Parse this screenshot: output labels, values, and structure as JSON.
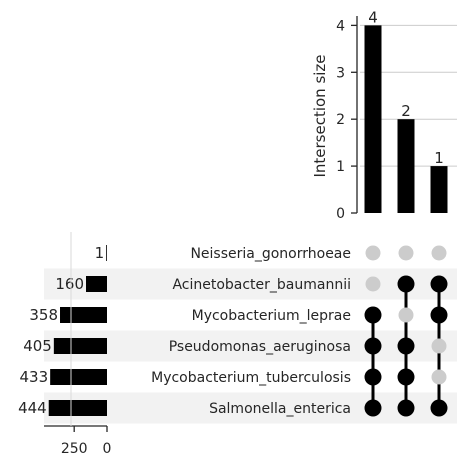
{
  "chart_data": {
    "type": "bar",
    "ylabel": "Intersection size",
    "sets": [
      {
        "name": "Neisseria_gonorrhoeae",
        "size": 1
      },
      {
        "name": "Acinetobacter_baumannii",
        "size": 160
      },
      {
        "name": "Mycobacterium_leprae",
        "size": 358
      },
      {
        "name": "Pseudomonas_aeruginosa",
        "size": 405
      },
      {
        "name": "Mycobacterium_tuberculosis",
        "size": 433
      },
      {
        "name": "Salmonella_enterica",
        "size": 444
      }
    ],
    "intersections": [
      {
        "size": 4,
        "members": [
          "Mycobacterium_leprae",
          "Pseudomonas_aeruginosa",
          "Mycobacterium_tuberculosis",
          "Salmonella_enterica"
        ]
      },
      {
        "size": 2,
        "members": [
          "Acinetobacter_baumannii",
          "Pseudomonas_aeruginosa",
          "Mycobacterium_tuberculosis",
          "Salmonella_enterica"
        ]
      },
      {
        "size": 1,
        "members": [
          "Acinetobacter_baumannii",
          "Mycobacterium_leprae",
          "Salmonella_enterica"
        ]
      }
    ],
    "intersection_axis": {
      "ylim": [
        0,
        4.2
      ],
      "ticks": [
        0,
        1,
        2,
        3,
        4
      ],
      "grid": true
    },
    "set_size_axis": {
      "xlim": [
        480,
        0
      ],
      "ticks": [
        250,
        0
      ],
      "tick_labels": [
        "250",
        "0"
      ]
    },
    "colors": {
      "bar": "#000000",
      "dot_active": "#000000",
      "dot_inactive": "#cccccc",
      "row_shade": "#f2f2f2",
      "grid": "#cccccc",
      "axis": "#262626"
    }
  }
}
